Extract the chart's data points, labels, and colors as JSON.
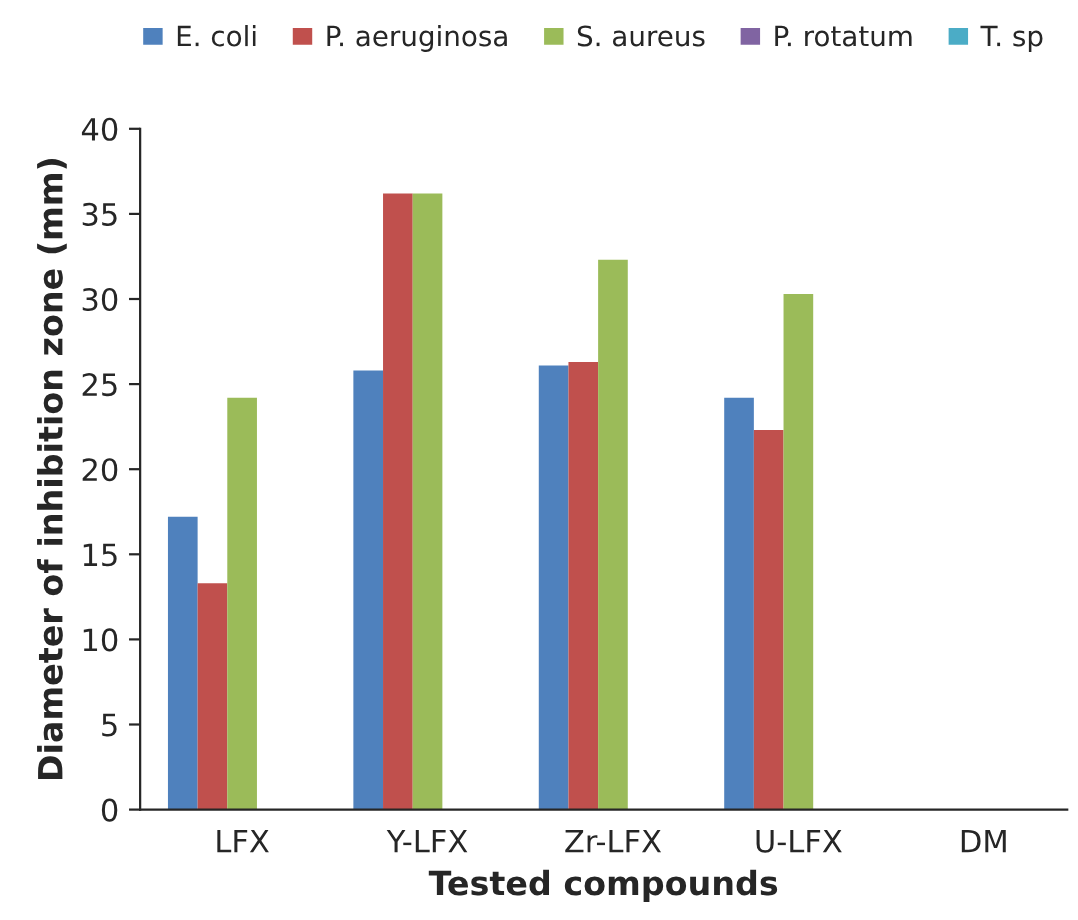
{
  "chart_data": {
    "type": "bar",
    "xlabel": "Tested compounds",
    "ylabel": "Diameter of inhibition zone (mm)",
    "categories": [
      "LFX",
      "Y-LFX",
      "Zr-LFX",
      "U-LFX",
      "DM"
    ],
    "series": [
      {
        "name": "E. coli",
        "color": "#4f81bd",
        "values": [
          17.2,
          25.8,
          26.1,
          24.2,
          0
        ]
      },
      {
        "name": "P. aeruginosa",
        "color": "#c0504d",
        "values": [
          13.3,
          36.2,
          26.3,
          22.3,
          0
        ]
      },
      {
        "name": "S. aureus",
        "color": "#9bbb59",
        "values": [
          24.2,
          36.2,
          32.3,
          30.3,
          0
        ]
      },
      {
        "name": "P. rotatum",
        "color": "#8064a2",
        "values": [
          0,
          0,
          0,
          0,
          0
        ]
      },
      {
        "name": "T. sp",
        "color": "#4bacc6",
        "values": [
          0,
          0,
          0,
          0,
          0
        ]
      }
    ],
    "ylim": [
      0,
      40
    ],
    "yticks": [
      0,
      5,
      10,
      15,
      20,
      25,
      30,
      35,
      40
    ],
    "grid": false,
    "legend": "top"
  }
}
